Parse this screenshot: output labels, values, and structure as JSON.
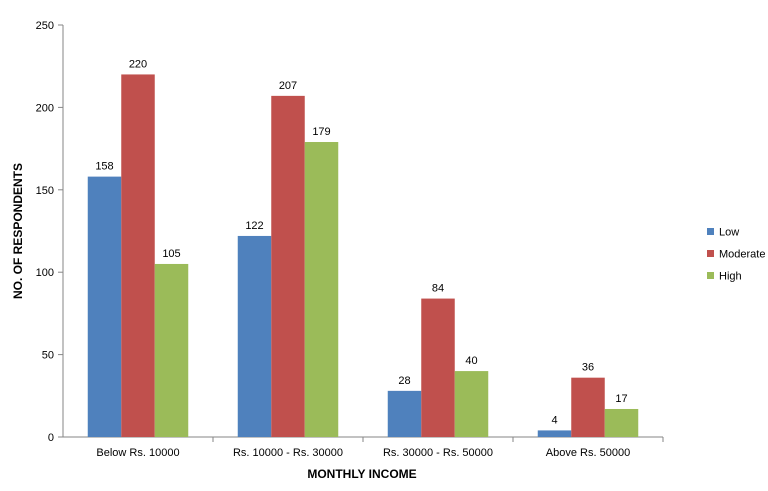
{
  "chart_data": {
    "type": "bar",
    "title": "",
    "xlabel": "MONTHLY INCOME",
    "ylabel": "NO. OF RESPONDENTS",
    "ylim": [
      0,
      250
    ],
    "yticks": [
      0,
      50,
      100,
      150,
      200,
      250
    ],
    "grid": false,
    "legend_position": "right",
    "categories": [
      "Below Rs. 10000",
      "Rs. 10000 - Rs. 30000",
      "Rs. 30000 - Rs. 50000",
      "Above Rs. 50000"
    ],
    "series": [
      {
        "name": "Low",
        "color": "#4F81BD",
        "values": [
          158,
          122,
          28,
          4
        ]
      },
      {
        "name": "Moderate",
        "color": "#C0504D",
        "values": [
          220,
          207,
          84,
          36
        ]
      },
      {
        "name": "High",
        "color": "#9BBB59",
        "values": [
          105,
          179,
          40,
          17
        ]
      }
    ]
  }
}
